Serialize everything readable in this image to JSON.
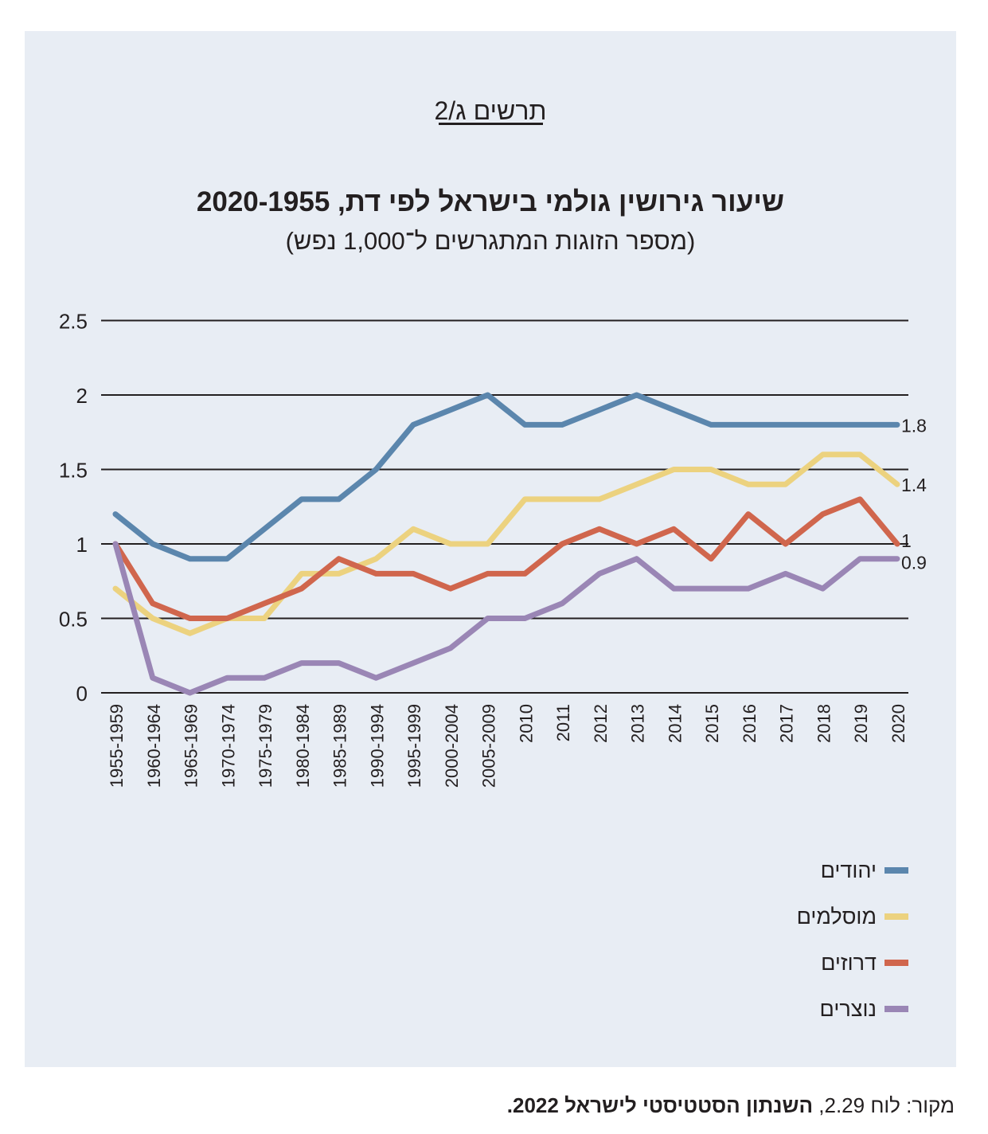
{
  "figure_label": "תרשים ג/2",
  "source": {
    "prefix": "מקור: לוח 2.29, ",
    "publication": "השנתון הסטטיסטי לישראל 2022."
  },
  "colors": {
    "panel_bg": "#e8edf4",
    "jews": "#5b86ad",
    "muslims": "#ecd27f",
    "druze": "#d0664d",
    "christians": "#9a86b5",
    "grid": "#231f20"
  },
  "chart_data": {
    "type": "line",
    "title": "שיעור גירושין גולמי בישראל לפי דת, 2020-1955",
    "subtitle": "(מספר הזוגות המתגרשים ל־1,000 נפש)",
    "ylim": [
      0,
      2.5
    ],
    "yticks": [
      "2.5",
      "2",
      "1.5",
      "1",
      "0.5",
      "0"
    ],
    "grid": true,
    "legend_position": "bottom-right",
    "categories": [
      "1955-1959",
      "1960-1964",
      "1965-1969",
      "1970-1974",
      "1975-1979",
      "1980-1984",
      "1985-1989",
      "1990-1994",
      "1995-1999",
      "2000-2004",
      "2005-2009",
      "2010",
      "2011",
      "2012",
      "2013",
      "2014",
      "2015",
      "2016",
      "2017",
      "2018",
      "2019",
      "2020"
    ],
    "series": [
      {
        "name": "יהודים",
        "color": "#5b86ad",
        "end_label": "1.8",
        "values": [
          1.2,
          1.0,
          0.9,
          0.9,
          1.1,
          1.3,
          1.3,
          1.5,
          1.8,
          1.9,
          2.0,
          1.8,
          1.8,
          1.9,
          2.0,
          1.9,
          1.8,
          1.8,
          1.8,
          1.8,
          1.8,
          1.8
        ]
      },
      {
        "name": "מוסלמים",
        "color": "#ecd27f",
        "end_label": "1.4",
        "values": [
          0.7,
          0.5,
          0.4,
          0.5,
          0.5,
          0.8,
          0.8,
          0.9,
          1.1,
          1.0,
          1.0,
          1.3,
          1.3,
          1.3,
          1.4,
          1.5,
          1.5,
          1.4,
          1.4,
          1.6,
          1.6,
          1.4
        ]
      },
      {
        "name": "דרוזים",
        "color": "#d0664d",
        "end_label": "1",
        "values": [
          1.0,
          0.6,
          0.5,
          0.5,
          0.6,
          0.7,
          0.9,
          0.8,
          0.8,
          0.7,
          0.8,
          0.8,
          1.0,
          1.1,
          1.0,
          1.1,
          0.9,
          1.2,
          1.0,
          1.2,
          1.3,
          1.0
        ]
      },
      {
        "name": "נוצרים",
        "color": "#9a86b5",
        "end_label": "0.9",
        "values": [
          1.0,
          0.1,
          0.0,
          0.1,
          0.1,
          0.2,
          0.2,
          0.1,
          0.2,
          0.3,
          0.5,
          0.5,
          0.6,
          0.8,
          0.9,
          0.7,
          0.7,
          0.7,
          0.8,
          0.7,
          0.9,
          0.9
        ]
      }
    ]
  }
}
